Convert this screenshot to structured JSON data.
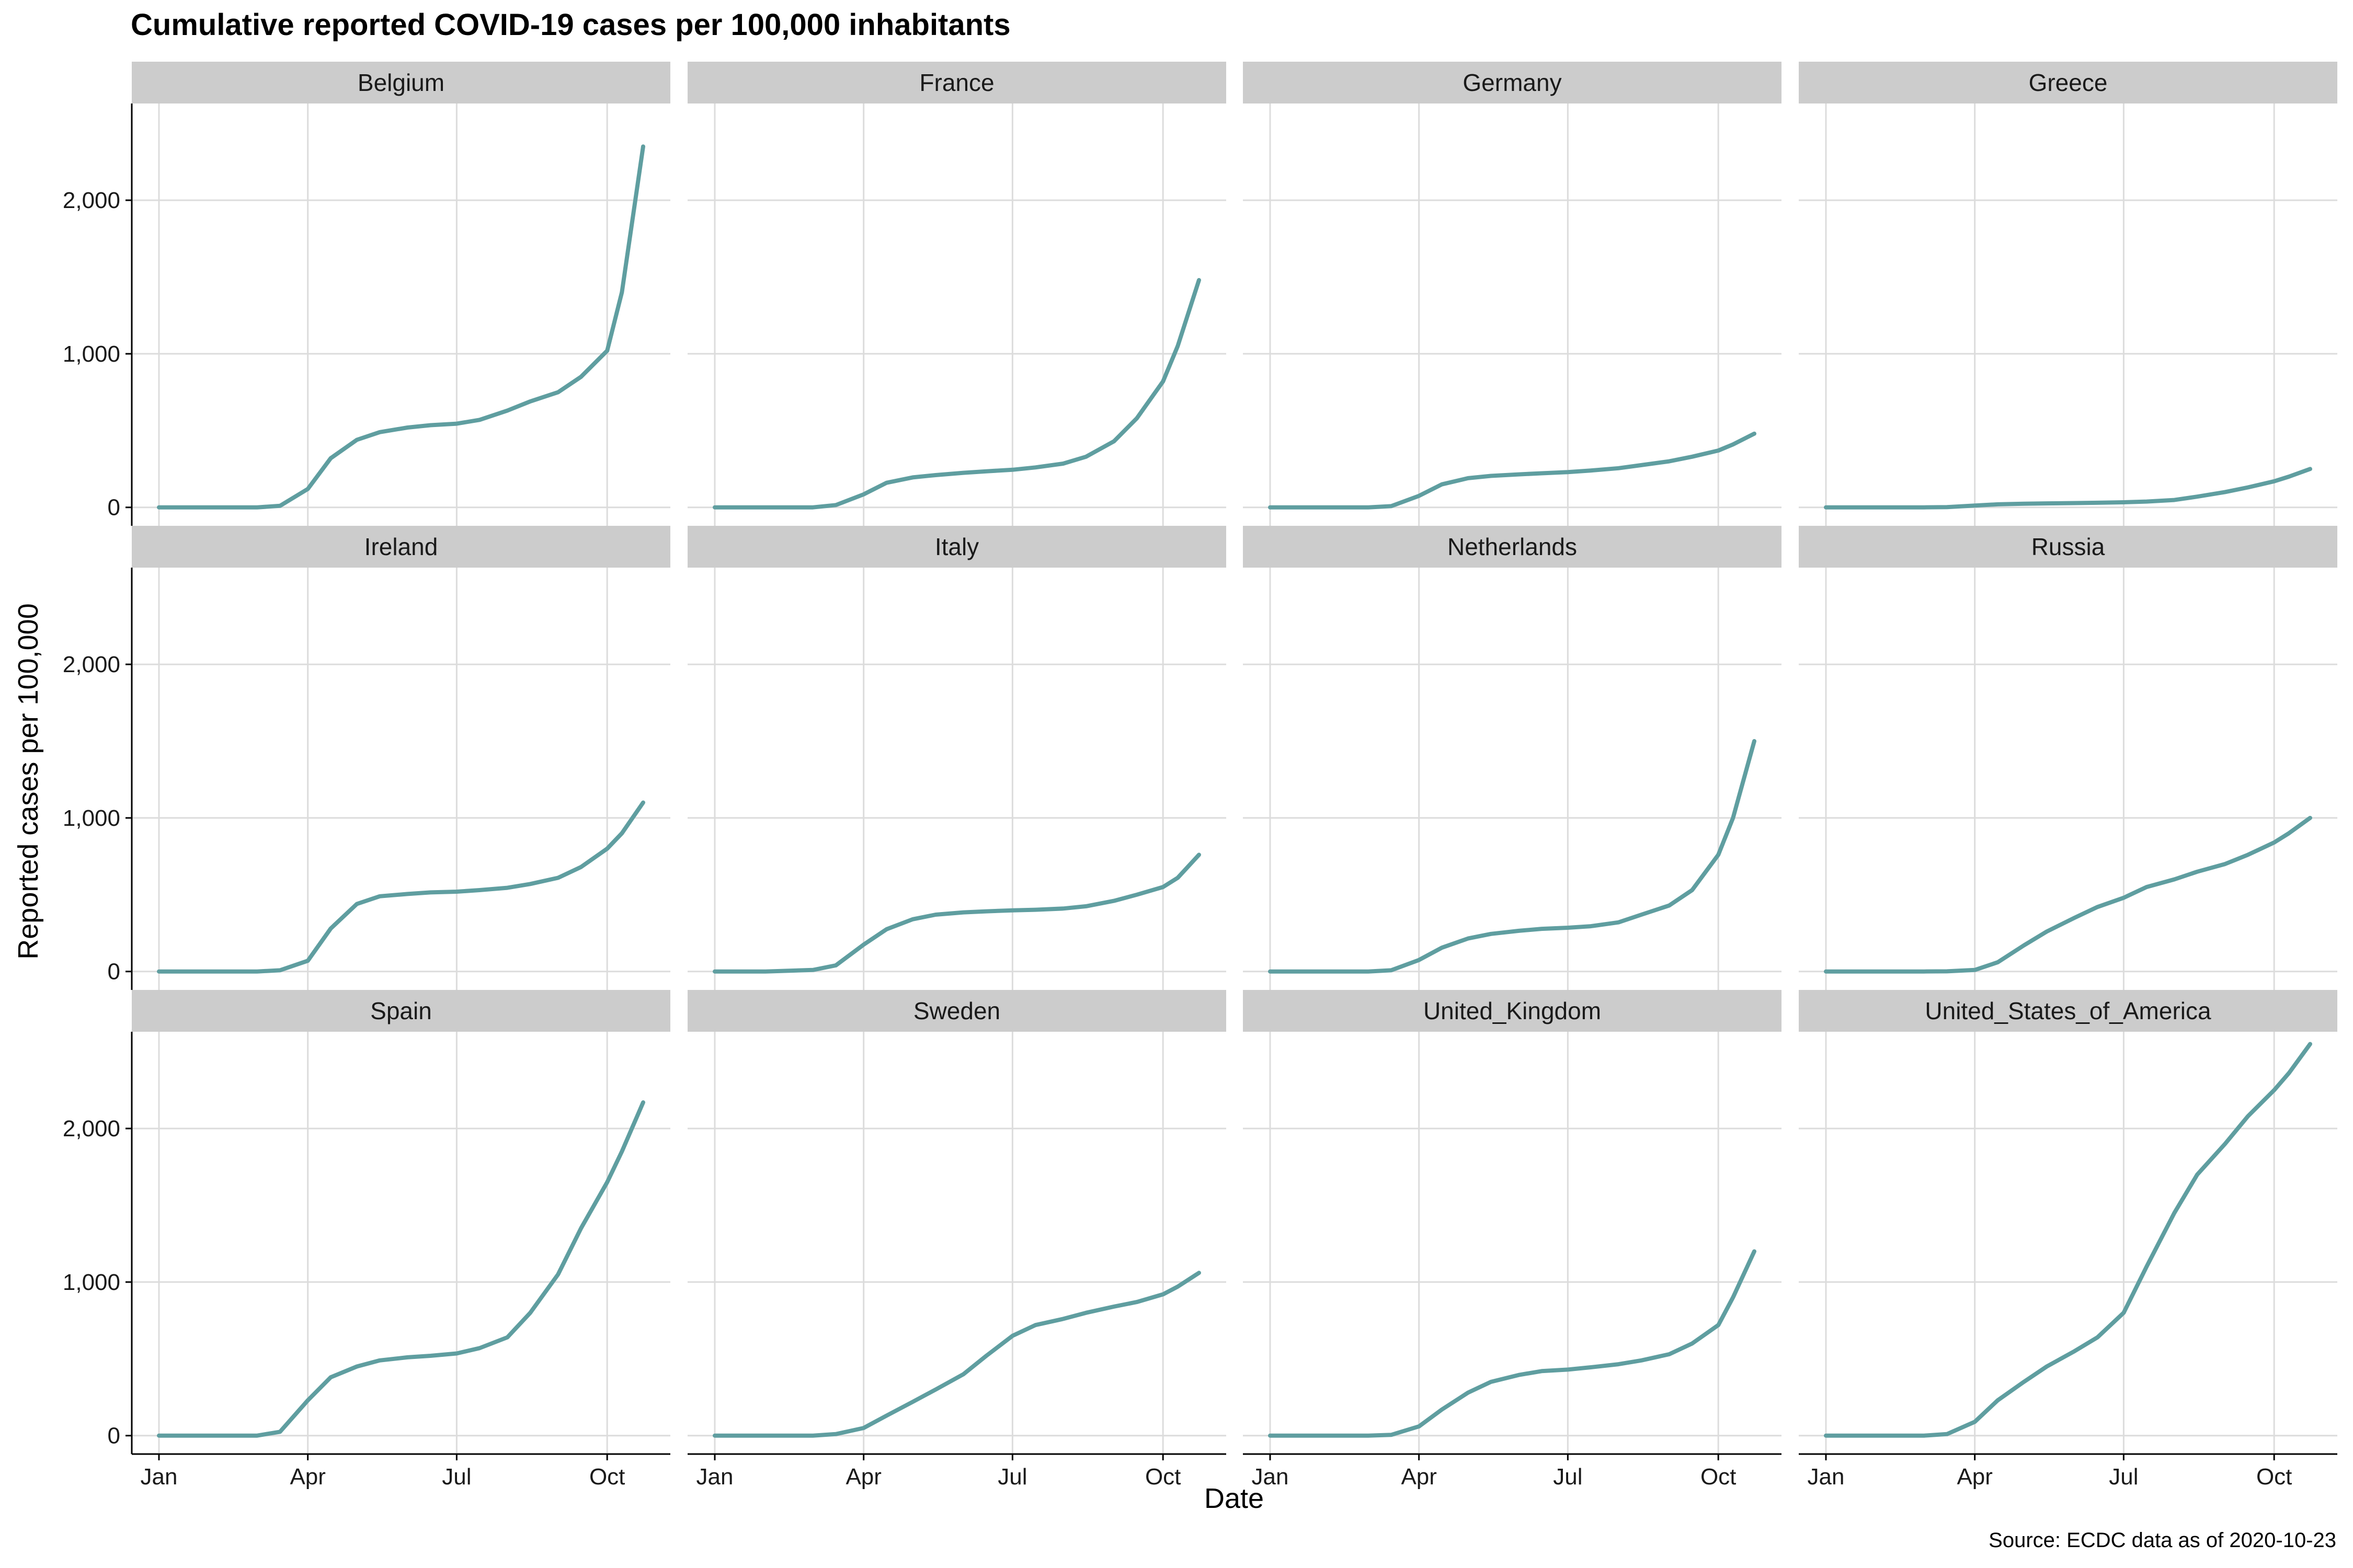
{
  "chart_data": {
    "type": "line",
    "title": "Cumulative reported COVID-19 cases per 100,000 inhabitants",
    "xlabel": "Date",
    "ylabel": "Reported cases per 100,000",
    "caption": "Source: ECDC data as of 2020-10-23",
    "x_ticks": [
      "Jan",
      "Apr",
      "Jul",
      "Oct"
    ],
    "y_ticks": [
      "0",
      "1,000",
      "2,000"
    ],
    "y_tick_values": [
      0,
      1000,
      2000
    ],
    "xlim": [
      "2020-01-01",
      "2020-10-23"
    ],
    "ylim": [
      0,
      2550
    ],
    "grid": true,
    "line_color": "#5F9EA0",
    "x": [
      "2020-01-01",
      "2020-02-01",
      "2020-03-01",
      "2020-03-15",
      "2020-04-01",
      "2020-04-15",
      "2020-05-01",
      "2020-05-15",
      "2020-06-01",
      "2020-06-15",
      "2020-07-01",
      "2020-07-15",
      "2020-08-01",
      "2020-08-15",
      "2020-09-01",
      "2020-09-15",
      "2020-10-01",
      "2020-10-10",
      "2020-10-23"
    ],
    "series": [
      {
        "name": "Belgium",
        "values": [
          0,
          0,
          0,
          10,
          120,
          320,
          440,
          490,
          520,
          535,
          545,
          570,
          630,
          690,
          750,
          850,
          1020,
          1400,
          2350
        ]
      },
      {
        "name": "France",
        "values": [
          0,
          0,
          0,
          15,
          85,
          160,
          195,
          210,
          225,
          235,
          245,
          260,
          285,
          330,
          430,
          580,
          820,
          1050,
          1480
        ]
      },
      {
        "name": "Germany",
        "values": [
          0,
          0,
          0,
          8,
          75,
          150,
          190,
          205,
          215,
          222,
          230,
          240,
          255,
          275,
          300,
          330,
          370,
          410,
          480
        ]
      },
      {
        "name": "Greece",
        "values": [
          0,
          0,
          0,
          2,
          12,
          20,
          24,
          26,
          28,
          30,
          33,
          38,
          48,
          70,
          100,
          130,
          170,
          200,
          250
        ]
      },
      {
        "name": "Ireland",
        "values": [
          0,
          0,
          0,
          8,
          70,
          280,
          440,
          490,
          505,
          515,
          520,
          530,
          545,
          570,
          610,
          680,
          800,
          900,
          1100
        ]
      },
      {
        "name": "Italy",
        "values": [
          0,
          0,
          10,
          40,
          175,
          275,
          340,
          370,
          385,
          392,
          398,
          402,
          410,
          425,
          460,
          500,
          550,
          610,
          760
        ]
      },
      {
        "name": "Netherlands",
        "values": [
          0,
          0,
          0,
          8,
          75,
          155,
          215,
          245,
          265,
          278,
          285,
          295,
          320,
          370,
          430,
          530,
          760,
          1000,
          1500
        ]
      },
      {
        "name": "Russia",
        "values": [
          0,
          0,
          0,
          1,
          10,
          60,
          170,
          260,
          350,
          420,
          480,
          550,
          600,
          650,
          700,
          760,
          840,
          900,
          1000
        ]
      },
      {
        "name": "Spain",
        "values": [
          0,
          0,
          0,
          25,
          230,
          380,
          450,
          490,
          510,
          520,
          535,
          570,
          640,
          800,
          1050,
          1350,
          1650,
          1850,
          2170
        ]
      },
      {
        "name": "Sweden",
        "values": [
          0,
          0,
          0,
          10,
          50,
          130,
          220,
          300,
          400,
          520,
          650,
          720,
          760,
          800,
          840,
          870,
          920,
          970,
          1060
        ]
      },
      {
        "name": "United_Kingdom",
        "values": [
          0,
          0,
          0,
          5,
          60,
          170,
          280,
          350,
          395,
          420,
          430,
          445,
          465,
          490,
          530,
          600,
          720,
          900,
          1200
        ]
      },
      {
        "name": "United_States_of_America",
        "values": [
          0,
          0,
          0,
          10,
          90,
          230,
          350,
          450,
          550,
          640,
          800,
          1100,
          1450,
          1700,
          1900,
          2080,
          2250,
          2360,
          2550
        ]
      }
    ]
  }
}
